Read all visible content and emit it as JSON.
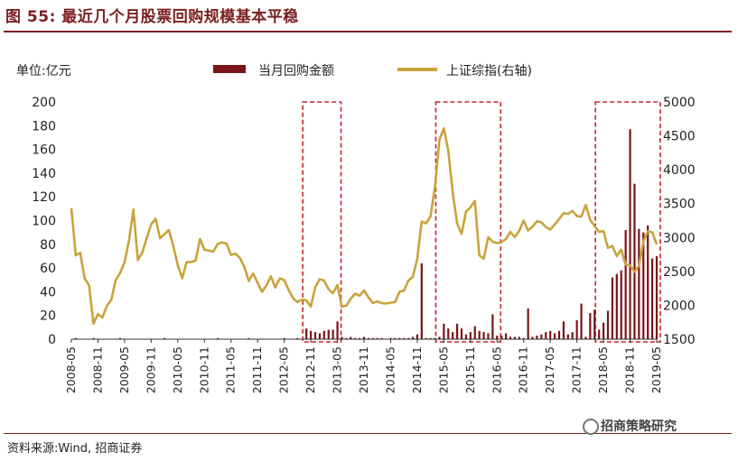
{
  "header": {
    "title": "图 55:  最近几个月股票回购规模基本平稳"
  },
  "footer": {
    "source": "资料来源:Wind, 招商证券",
    "watermark": "招商策略研究"
  },
  "chart_data": {
    "type": "bar+line",
    "unit_label": "单位:亿元",
    "legend": [
      "当月回购金额",
      "上证综指(右轴)"
    ],
    "colors": {
      "bar": "#7a1416",
      "line": "#c9a33c",
      "highlight": "#c0282d",
      "axis": "#333333"
    },
    "ylim_left": [
      0,
      200
    ],
    "yticks_left": [
      "0",
      "20",
      "40",
      "60",
      "80",
      "100",
      "120",
      "140",
      "160",
      "180",
      "200"
    ],
    "ylim_right": [
      1500,
      5000
    ],
    "yticks_right": [
      "1500",
      "2000",
      "2500",
      "3000",
      "3500",
      "4000",
      "4500",
      "5000"
    ],
    "x_labels": [
      "2008-05",
      "2008-11",
      "2009-05",
      "2009-11",
      "2010-05",
      "2010-11",
      "2011-05",
      "2011-11",
      "2012-05",
      "2012-11",
      "2013-05",
      "2013-11",
      "2014-05",
      "2014-11",
      "2015-05",
      "2015-11",
      "2016-05",
      "2016-11",
      "2017-05",
      "2017-11",
      "2018-05",
      "2018-11",
      "2019-05"
    ],
    "highlight_ranges": [
      [
        "2012-10",
        "2013-05"
      ],
      [
        "2015-04",
        "2016-05"
      ],
      [
        "2018-04",
        "2019-05"
      ]
    ],
    "index_series": {
      "name": "上证综指(右轴)",
      "months": [
        "2008-05",
        "2008-06",
        "2008-07",
        "2008-08",
        "2008-09",
        "2008-10",
        "2008-11",
        "2008-12",
        "2009-01",
        "2009-02",
        "2009-03",
        "2009-04",
        "2009-05",
        "2009-06",
        "2009-07",
        "2009-08",
        "2009-09",
        "2009-10",
        "2009-11",
        "2009-12",
        "2010-01",
        "2010-02",
        "2010-03",
        "2010-04",
        "2010-05",
        "2010-06",
        "2010-07",
        "2010-08",
        "2010-09",
        "2010-10",
        "2010-11",
        "2010-12",
        "2011-01",
        "2011-02",
        "2011-03",
        "2011-04",
        "2011-05",
        "2011-06",
        "2011-07",
        "2011-08",
        "2011-09",
        "2011-10",
        "2011-11",
        "2011-12",
        "2012-01",
        "2012-02",
        "2012-03",
        "2012-04",
        "2012-05",
        "2012-06",
        "2012-07",
        "2012-08",
        "2012-09",
        "2012-10",
        "2012-11",
        "2012-12",
        "2013-01",
        "2013-02",
        "2013-03",
        "2013-04",
        "2013-05",
        "2013-06",
        "2013-07",
        "2013-08",
        "2013-09",
        "2013-10",
        "2013-11",
        "2013-12",
        "2014-01",
        "2014-02",
        "2014-03",
        "2014-04",
        "2014-05",
        "2014-06",
        "2014-07",
        "2014-08",
        "2014-09",
        "2014-10",
        "2014-11",
        "2014-12",
        "2015-01",
        "2015-02",
        "2015-03",
        "2015-04",
        "2015-05",
        "2015-06",
        "2015-07",
        "2015-08",
        "2015-09",
        "2015-10",
        "2015-11",
        "2015-12",
        "2016-01",
        "2016-02",
        "2016-03",
        "2016-04",
        "2016-05",
        "2016-06",
        "2016-07",
        "2016-08",
        "2016-09",
        "2016-10",
        "2016-11",
        "2016-12",
        "2017-01",
        "2017-02",
        "2017-03",
        "2017-04",
        "2017-05",
        "2017-06",
        "2017-07",
        "2017-08",
        "2017-09",
        "2017-10",
        "2017-11",
        "2017-12",
        "2018-01",
        "2018-02",
        "2018-03",
        "2018-04",
        "2018-05",
        "2018-06",
        "2018-07",
        "2018-08",
        "2018-09",
        "2018-10",
        "2018-11",
        "2018-12",
        "2019-01",
        "2019-02",
        "2019-03",
        "2019-04",
        "2019-05"
      ],
      "values": [
        3433,
        2736,
        2775,
        2397,
        2293,
        1729,
        1871,
        1821,
        1991,
        2082,
        2373,
        2477,
        2633,
        2959,
        3412,
        2667,
        2779,
        2996,
        3195,
        3277,
        2989,
        3051,
        3110,
        2871,
        2592,
        2398,
        2638,
        2639,
        2656,
        2979,
        2820,
        2808,
        2791,
        2905,
        2928,
        2911,
        2743,
        2762,
        2701,
        2568,
        2359,
        2469,
        2333,
        2199,
        2293,
        2429,
        2263,
        2397,
        2373,
        2226,
        2104,
        2047,
        2086,
        2069,
        1980,
        2269,
        2385,
        2366,
        2237,
        2178,
        2301,
        1979,
        1994,
        2098,
        2174,
        2142,
        2220,
        2116,
        2033,
        2056,
        2033,
        2026,
        2039,
        2048,
        2201,
        2217,
        2364,
        2420,
        2683,
        3235,
        3210,
        3310,
        3748,
        4442,
        4612,
        4277,
        3664,
        3206,
        3053,
        3383,
        3446,
        3539,
        2738,
        2688,
        3004,
        2938,
        2917,
        2930,
        2979,
        3085,
        3005,
        3100,
        3250,
        3104,
        3159,
        3242,
        3223,
        3155,
        3117,
        3192,
        3273,
        3361,
        3349,
        3393,
        3317,
        3307,
        3481,
        3259,
        3169,
        3082,
        3095,
        2847,
        2876,
        2725,
        2821,
        2603,
        2588,
        2494,
        2585,
        2941,
        3091,
        3078,
        2898
      ]
    },
    "bar_series": {
      "name": "当月回购金额",
      "months": [
        "2008-06",
        "2008-10",
        "2009-04",
        "2010-02",
        "2011-02",
        "2011-09",
        "2012-05",
        "2012-08",
        "2012-10",
        "2012-11",
        "2012-12",
        "2013-01",
        "2013-02",
        "2013-03",
        "2013-04",
        "2013-05",
        "2013-06",
        "2013-07",
        "2013-08",
        "2013-09",
        "2013-10",
        "2013-11",
        "2013-12",
        "2014-01",
        "2014-02",
        "2014-03",
        "2014-05",
        "2014-06",
        "2014-07",
        "2014-08",
        "2014-09",
        "2014-10",
        "2014-11",
        "2014-12",
        "2015-01",
        "2015-02",
        "2015-03",
        "2015-04",
        "2015-05",
        "2015-06",
        "2015-07",
        "2015-08",
        "2015-09",
        "2015-10",
        "2015-11",
        "2015-12",
        "2016-01",
        "2016-02",
        "2016-03",
        "2016-04",
        "2016-05",
        "2016-06",
        "2016-07",
        "2016-08",
        "2016-09",
        "2016-10",
        "2016-11",
        "2016-12",
        "2017-01",
        "2017-02",
        "2017-03",
        "2017-04",
        "2017-05",
        "2017-06",
        "2017-07",
        "2017-08",
        "2017-09",
        "2017-10",
        "2017-11",
        "2017-12",
        "2018-01",
        "2018-02",
        "2018-03",
        "2018-04",
        "2018-05",
        "2018-06",
        "2018-07",
        "2018-08",
        "2018-09",
        "2018-10",
        "2018-11",
        "2018-12",
        "2019-01",
        "2019-02",
        "2019-03",
        "2019-04",
        "2019-05"
      ],
      "values": [
        1,
        1,
        1,
        1,
        1,
        1,
        1,
        1,
        9,
        7,
        6,
        5,
        7,
        8,
        8,
        15,
        2,
        1,
        2,
        1,
        1,
        2,
        1,
        1,
        1,
        1,
        1,
        1,
        1,
        1,
        1,
        2,
        4,
        64,
        1,
        1,
        1,
        2,
        13,
        9,
        6,
        13,
        9,
        4,
        6,
        11,
        7,
        6,
        5,
        21,
        3,
        3,
        5,
        2,
        2,
        2,
        1,
        26,
        2,
        3,
        4,
        6,
        7,
        5,
        7,
        15,
        4,
        6,
        16,
        30,
        2,
        22,
        25,
        8,
        14,
        24,
        52,
        55,
        58,
        92,
        177,
        131,
        93,
        90,
        96,
        68,
        70
      ]
    }
  }
}
